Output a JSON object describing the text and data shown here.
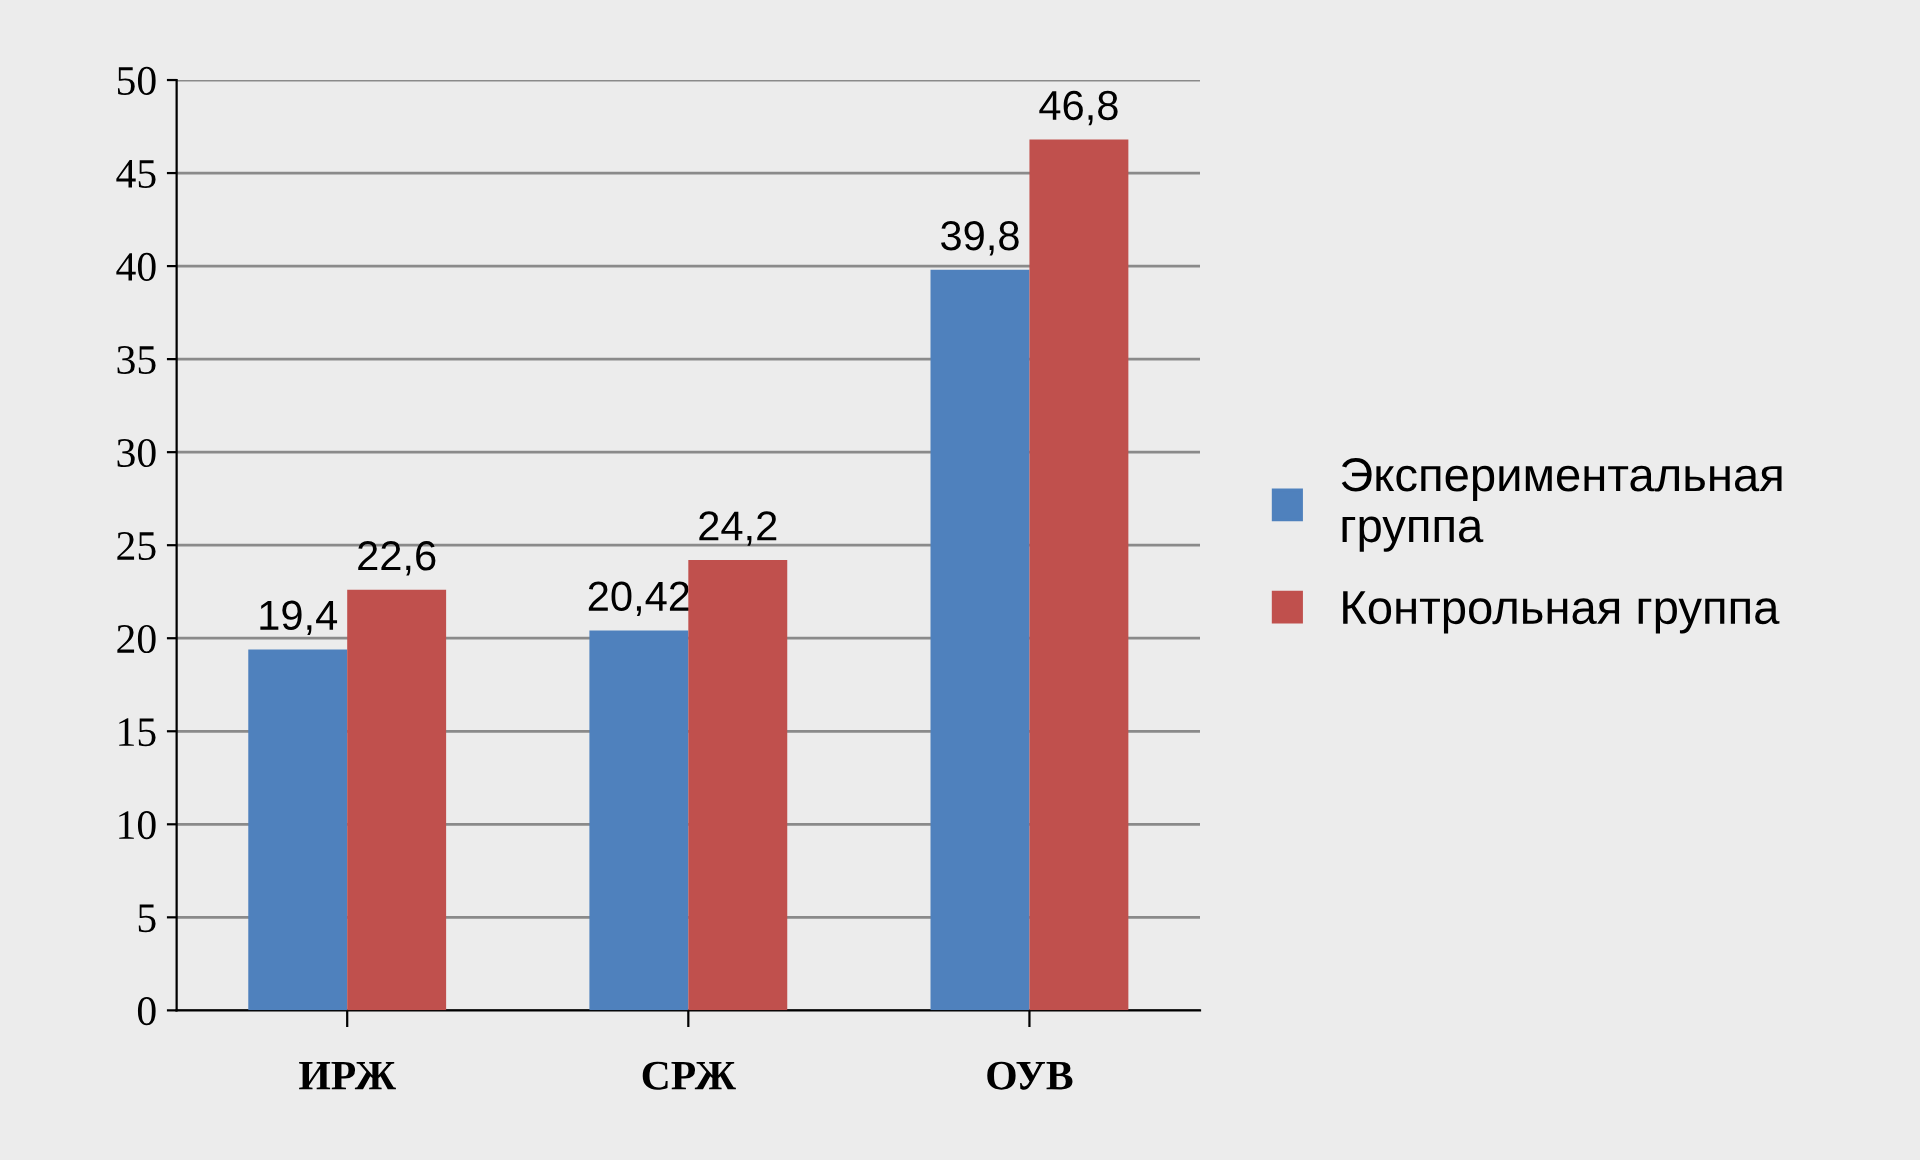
{
  "chart_data": {
    "type": "bar",
    "categories": [
      "ИРЖ",
      "СРЖ",
      "ОУВ"
    ],
    "series": [
      {
        "name": "Экспериментальная группа",
        "color": "#4f81bd",
        "values": [
          19.4,
          20.42,
          39.8
        ],
        "value_labels": [
          "19,4",
          "20,42",
          "39,8"
        ]
      },
      {
        "name": "Контрольная группа",
        "color": "#c0504d",
        "values": [
          22.6,
          24.2,
          46.8
        ],
        "value_labels": [
          "22,6",
          "24,2",
          "46,8"
        ]
      }
    ],
    "ylim": [
      0,
      50
    ],
    "yticks": [
      0,
      5,
      10,
      15,
      20,
      25,
      30,
      35,
      40,
      45,
      50
    ],
    "grid": "y",
    "legend": "right"
  }
}
